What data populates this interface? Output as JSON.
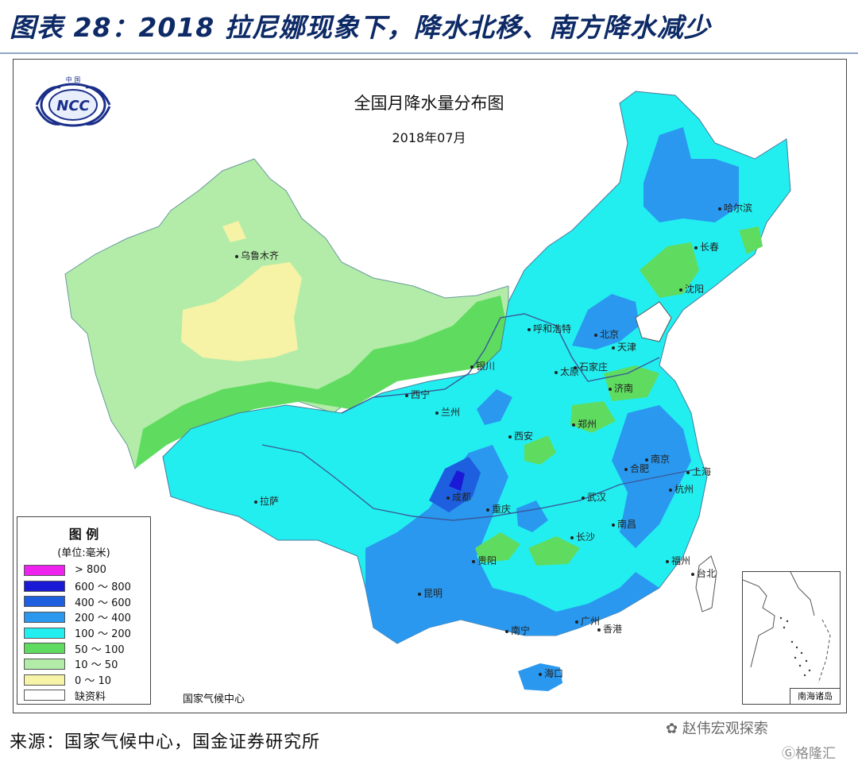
{
  "header": {
    "title": "图表 28：2018 拉尼娜现象下，降水北移、南方降水减少"
  },
  "map": {
    "title": "全国月降水量分布图",
    "subtitle": "2018年07月",
    "org": "国家气候中心",
    "logo_text": "NCC",
    "logo_top_text": "中国",
    "inset_label": "南海诸岛",
    "cities": [
      {
        "name": "乌鲁木齐"
      },
      {
        "name": "拉萨"
      },
      {
        "name": "西宁"
      },
      {
        "name": "兰州"
      },
      {
        "name": "银川"
      },
      {
        "name": "呼和浩特"
      },
      {
        "name": "北京"
      },
      {
        "name": "天津"
      },
      {
        "name": "太原"
      },
      {
        "name": "石家庄"
      },
      {
        "name": "济南"
      },
      {
        "name": "郑州"
      },
      {
        "name": "西安"
      },
      {
        "name": "成都"
      },
      {
        "name": "重庆"
      },
      {
        "name": "贵阳"
      },
      {
        "name": "昆明"
      },
      {
        "name": "南宁"
      },
      {
        "name": "广州"
      },
      {
        "name": "香港"
      },
      {
        "name": "海口"
      },
      {
        "name": "长沙"
      },
      {
        "name": "武汉"
      },
      {
        "name": "南昌"
      },
      {
        "name": "合肥"
      },
      {
        "name": "南京"
      },
      {
        "name": "上海"
      },
      {
        "name": "杭州"
      },
      {
        "name": "福州"
      },
      {
        "name": "台北"
      },
      {
        "name": "哈尔滨"
      },
      {
        "name": "长春"
      },
      {
        "name": "沈阳"
      }
    ]
  },
  "legend": {
    "title": "图 例",
    "unit": "(单位:毫米)",
    "items": [
      {
        "label": "> 800",
        "color": "#ee22ee"
      },
      {
        "label": "600 ～ 800",
        "color": "#1a1ad6"
      },
      {
        "label": "400 ～ 600",
        "color": "#1e5fe0"
      },
      {
        "label": "200 ～ 400",
        "color": "#2a98ef"
      },
      {
        "label": "100 ～ 200",
        "color": "#22eef0"
      },
      {
        "label": "50 ～ 100",
        "color": "#5fdc5f"
      },
      {
        "label": "10 ～ 50",
        "color": "#b3eca8"
      },
      {
        "label": "0 ～ 10",
        "color": "#f6f2a6"
      },
      {
        "label": "缺资料",
        "color": "#ffffff"
      }
    ]
  },
  "source": "来源：国家气候中心，国金证券研究所",
  "watermark": "赵伟宏观探索",
  "watermark2": "格隆汇"
}
